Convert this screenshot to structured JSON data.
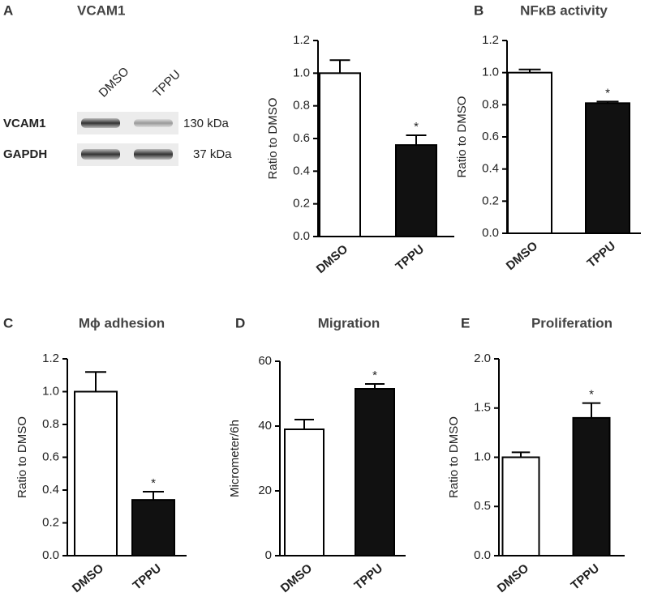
{
  "blot": {
    "label": "A",
    "title": "VCAM1",
    "lanes": [
      "DMSO",
      "TPPU"
    ],
    "rows": [
      {
        "name": "VCAM1",
        "size": "130 kDa"
      },
      {
        "name": "GAPDH",
        "size": "37 kDa"
      }
    ]
  },
  "chart_data": [
    {
      "type": "bar",
      "ylabel": "Ratio to DMSO",
      "categories": [
        "DMSO",
        "TPPU"
      ],
      "values": [
        1.0,
        0.56
      ],
      "errors": [
        0.08,
        0.06
      ],
      "colors": [
        "#ffffff",
        "#111111"
      ],
      "ylim": [
        0,
        1.2
      ],
      "yticks": [
        {
          "value": 0,
          "label": "0.0"
        },
        0.2,
        0.4,
        0.6,
        0.8,
        {
          "value": 1,
          "label": "1.0"
        },
        1.2
      ],
      "annotations": [
        {
          "category": "TPPU",
          "text": "*"
        }
      ]
    },
    {
      "type": "bar",
      "label": "B",
      "title": "NFκB activity",
      "ylabel": "Ratio to DMSO",
      "categories": [
        "DMSO",
        "TPPU"
      ],
      "values": [
        1.0,
        0.81
      ],
      "errors": [
        0.02,
        0.01
      ],
      "colors": [
        "#ffffff",
        "#111111"
      ],
      "ylim": [
        0,
        1.2
      ],
      "yticks": [
        {
          "value": 0,
          "label": "0.0"
        },
        0.2,
        0.4,
        0.6,
        0.8,
        {
          "value": 1,
          "label": "1.0"
        },
        1.2
      ],
      "annotations": [
        {
          "category": "TPPU",
          "text": "*"
        }
      ]
    },
    {
      "type": "bar",
      "label": "C",
      "title": "Mϕ adhesion",
      "ylabel": "Ratio to DMSO",
      "categories": [
        "DMSO",
        "TPPU"
      ],
      "values": [
        1.0,
        0.34
      ],
      "errors": [
        0.12,
        0.05
      ],
      "colors": [
        "#ffffff",
        "#111111"
      ],
      "ylim": [
        0,
        1.2
      ],
      "yticks": [
        {
          "value": 0,
          "label": "0.0"
        },
        0.2,
        0.4,
        0.6,
        0.8,
        {
          "value": 1,
          "label": "1.0"
        },
        1.2
      ],
      "annotations": [
        {
          "category": "TPPU",
          "text": "*"
        }
      ]
    },
    {
      "type": "bar",
      "label": "D",
      "title": "Migration",
      "ylabel": "Micrometer/6h",
      "categories": [
        "DMSO",
        "TPPU"
      ],
      "values": [
        39,
        51.5
      ],
      "errors": [
        3,
        1.5
      ],
      "colors": [
        "#ffffff",
        "#111111"
      ],
      "ylim": [
        0,
        60
      ],
      "yticks": [
        0,
        20,
        40,
        60
      ],
      "annotations": [
        {
          "category": "TPPU",
          "text": "*"
        }
      ]
    },
    {
      "type": "bar",
      "label": "E",
      "title": "Proliferation",
      "ylabel": "Ratio to DMSO",
      "categories": [
        "DMSO",
        "TPPU"
      ],
      "values": [
        1.0,
        1.4
      ],
      "errors": [
        0.05,
        0.15
      ],
      "colors": [
        "#ffffff",
        "#111111"
      ],
      "ylim": [
        0,
        2
      ],
      "yticks": [
        {
          "value": 0,
          "label": "0.0"
        },
        0.5,
        {
          "value": 1,
          "label": "1.0"
        },
        1.5,
        {
          "value": 2,
          "label": "2.0"
        }
      ],
      "annotations": [
        {
          "category": "TPPU",
          "text": "*"
        }
      ]
    }
  ]
}
